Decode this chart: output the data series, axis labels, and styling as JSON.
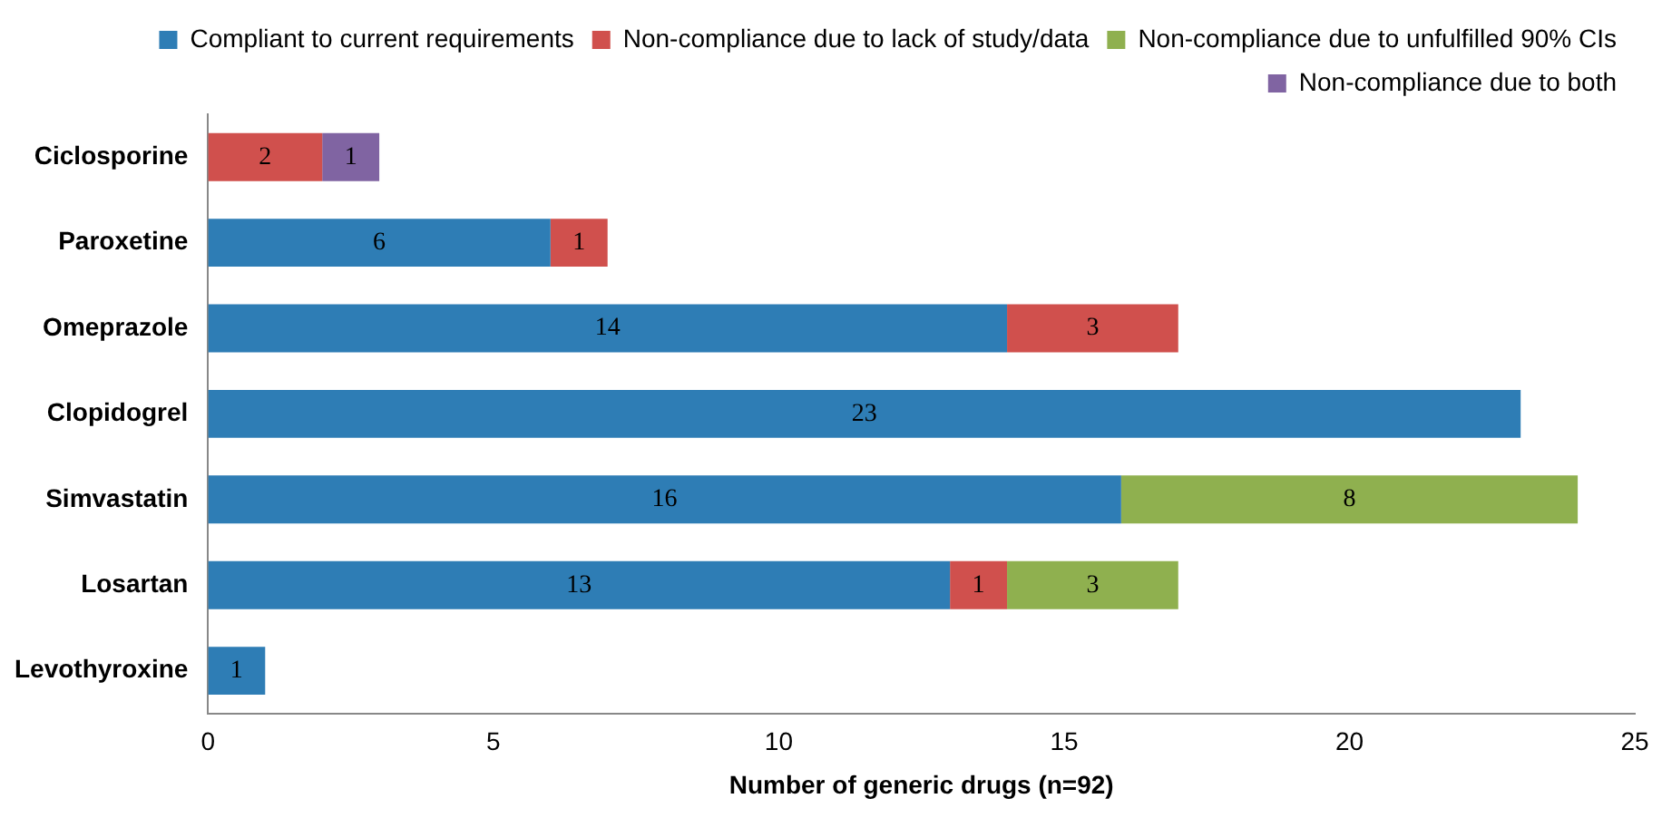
{
  "chart_data": {
    "type": "bar",
    "orientation": "horizontal",
    "stacked": true,
    "xlabel": "Number of generic drugs (n=92)",
    "categories": [
      "Ciclosporine",
      "Paroxetine",
      "Omeprazole",
      "Clopidogrel",
      "Simvastatin",
      "Losartan",
      "Levothyroxine"
    ],
    "series": [
      {
        "name": "Compliant to current requirements",
        "color": "#2e7db5",
        "values": [
          null,
          6,
          14,
          23,
          16,
          13,
          1
        ]
      },
      {
        "name": "Non-compliance due to lack of study/data",
        "color": "#d0504d",
        "values": [
          2,
          1,
          3,
          null,
          null,
          1,
          null
        ]
      },
      {
        "name": "Non-compliance due to unfulfilled 90% CIs",
        "color": "#8fb04f",
        "values": [
          null,
          null,
          null,
          null,
          8,
          3,
          null
        ]
      },
      {
        "name": "Non-compliance due to both",
        "color": "#8064a2",
        "values": [
          1,
          null,
          null,
          null,
          null,
          null,
          null
        ]
      }
    ],
    "xlim": [
      0,
      25
    ],
    "xticks": [
      0,
      5,
      10,
      15,
      20,
      25
    ],
    "grid": false,
    "legend": "top right",
    "data_labels": true
  }
}
